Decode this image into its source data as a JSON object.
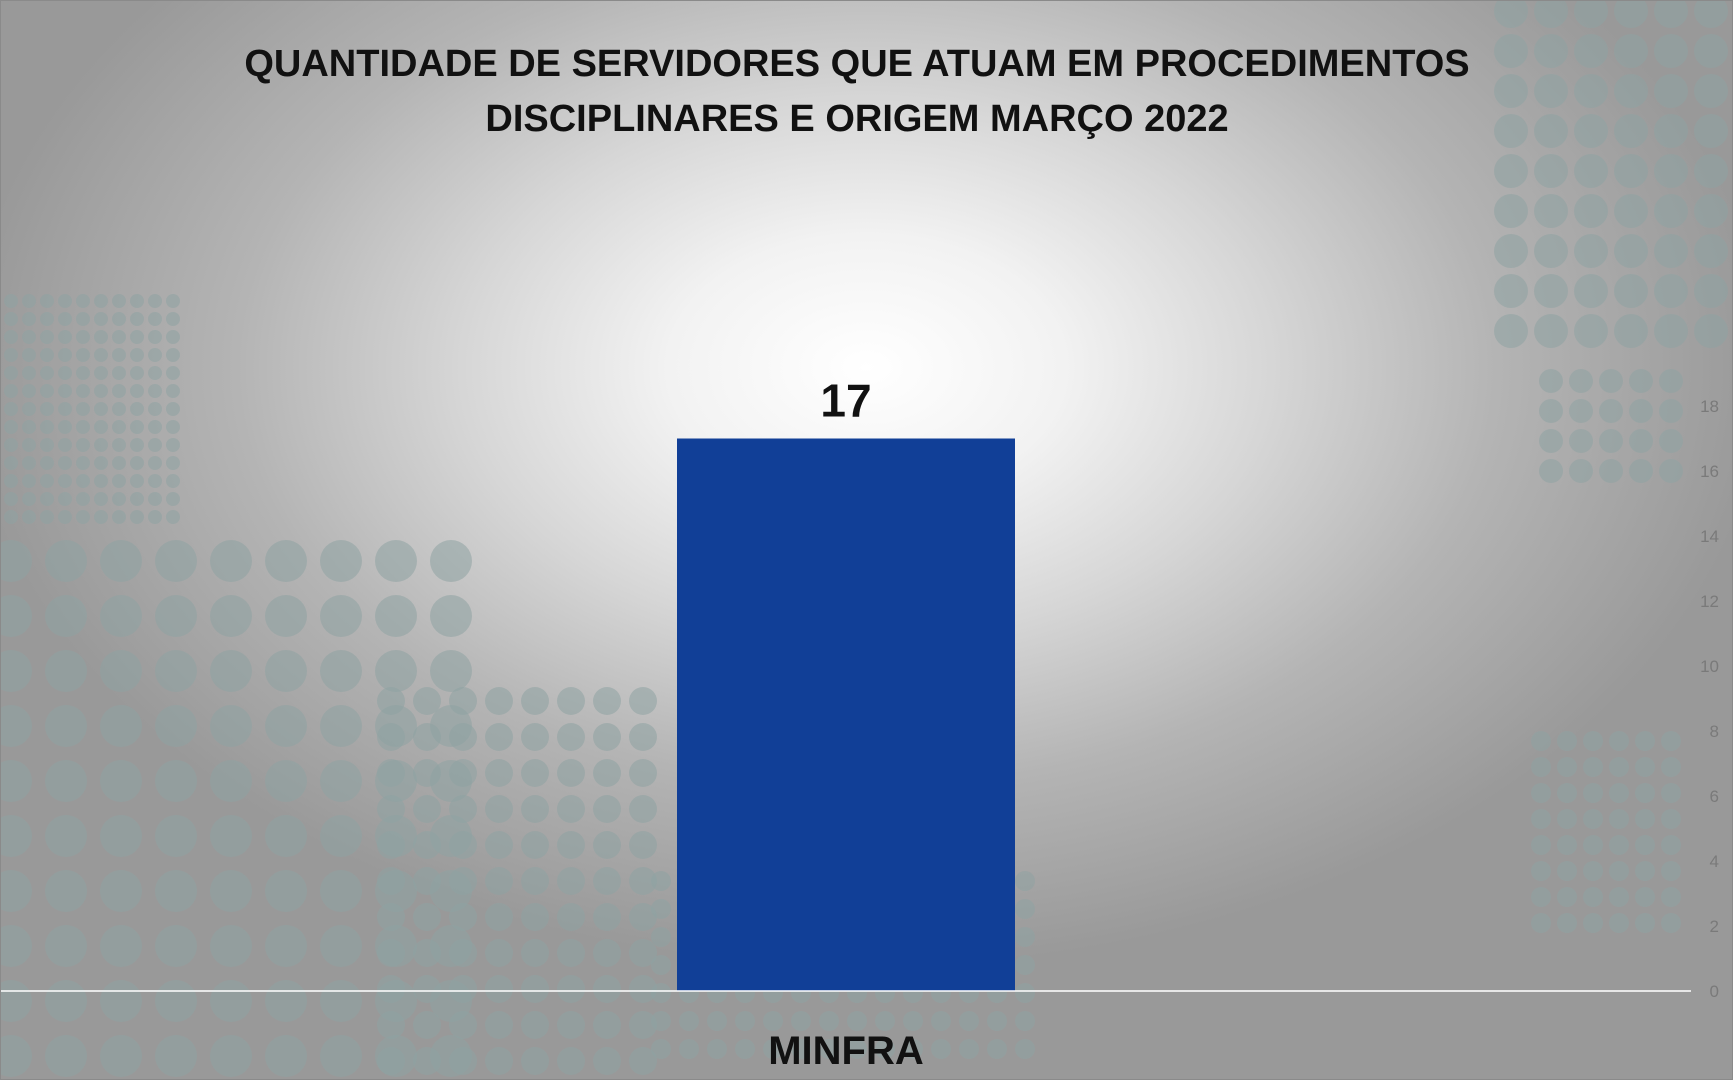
{
  "chart_data": {
    "type": "bar",
    "title_lines": [
      "QUANTIDADE DE SERVIDORES QUE ATUAM EM PROCEDIMENTOS",
      "DISCIPLINARES E ORIGEM MARÇO 2022"
    ],
    "categories": [
      "MINFRA"
    ],
    "values": [
      17
    ],
    "data_labels": [
      "17"
    ],
    "xlabel": "",
    "ylabel": "",
    "ylim": [
      0,
      18
    ],
    "yticks": [
      "0",
      "2",
      "4",
      "6",
      "8",
      "10",
      "12",
      "14",
      "16",
      "18"
    ],
    "y_axis_side": "right",
    "grid": false,
    "legend": "none",
    "colors": {
      "bar": "#113f97",
      "dots": "#8fa3a3",
      "axis": "#ffffff"
    }
  }
}
